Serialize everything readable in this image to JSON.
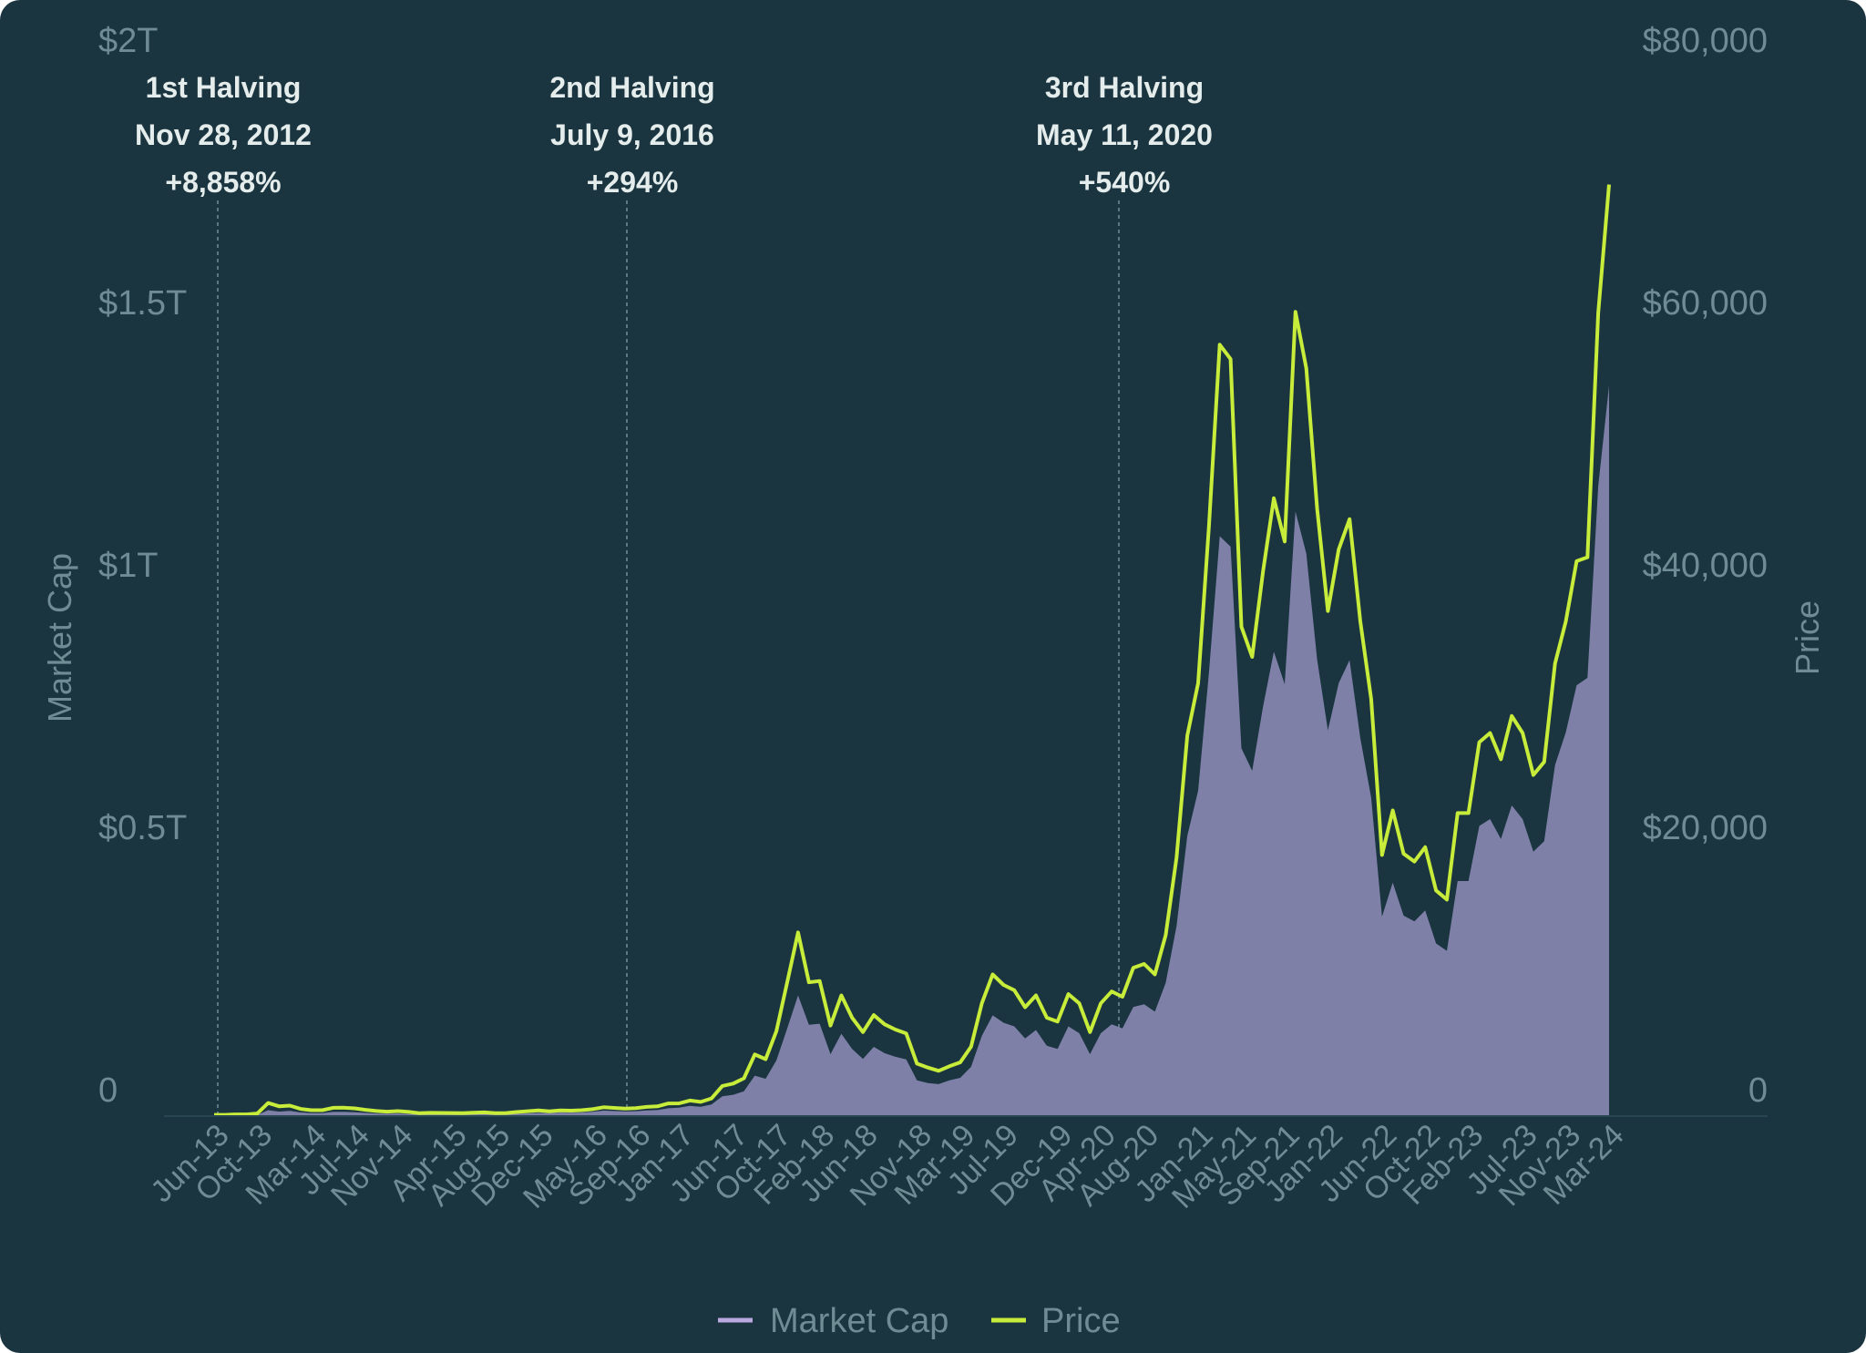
{
  "chart_data": {
    "type": "area+line",
    "title": "",
    "xlabel": "",
    "ylabel_left": "Market Cap",
    "ylabel_right": "Price",
    "ylim_left_billions": [
      0,
      2000
    ],
    "ylim_right": [
      0,
      80000
    ],
    "left_ticks": [
      "0",
      "$0.5T",
      "$1T",
      "$1.5T",
      "$2T"
    ],
    "right_ticks": [
      "0",
      "$20,000",
      "$40,000",
      "$60,000",
      "$80,000"
    ],
    "x_ticks": [
      {
        "label": "Jun-13",
        "i": 0
      },
      {
        "label": "Oct-13",
        "i": 4
      },
      {
        "label": "Mar-14",
        "i": 9
      },
      {
        "label": "Jul-14",
        "i": 13
      },
      {
        "label": "Nov-14",
        "i": 17
      },
      {
        "label": "Apr-15",
        "i": 22
      },
      {
        "label": "Aug-15",
        "i": 26
      },
      {
        "label": "Dec-15",
        "i": 30
      },
      {
        "label": "May-16",
        "i": 35
      },
      {
        "label": "Sep-16",
        "i": 39
      },
      {
        "label": "Jan-17",
        "i": 43
      },
      {
        "label": "Jun-17",
        "i": 48
      },
      {
        "label": "Oct-17",
        "i": 52
      },
      {
        "label": "Feb-18",
        "i": 56
      },
      {
        "label": "Jun-18",
        "i": 60
      },
      {
        "label": "Nov-18",
        "i": 65
      },
      {
        "label": "Mar-19",
        "i": 69
      },
      {
        "label": "Jul-19",
        "i": 73
      },
      {
        "label": "Dec-19",
        "i": 78
      },
      {
        "label": "Apr-20",
        "i": 82
      },
      {
        "label": "Aug-20",
        "i": 86
      },
      {
        "label": "Jan-21",
        "i": 91
      },
      {
        "label": "May-21",
        "i": 95
      },
      {
        "label": "Sep-21",
        "i": 99
      },
      {
        "label": "Jan-22",
        "i": 103
      },
      {
        "label": "Jun-22",
        "i": 108
      },
      {
        "label": "Oct-22",
        "i": 112
      },
      {
        "label": "Feb-23",
        "i": 116
      },
      {
        "label": "Jul-23",
        "i": 121
      },
      {
        "label": "Nov-23",
        "i": 125
      },
      {
        "label": "Mar-24",
        "i": 129
      }
    ],
    "series": [
      {
        "name": "Market Cap",
        "unit": "billions USD",
        "color": "#b9a9e0",
        "values": [
          1.1,
          1.1,
          1.5,
          1.5,
          2.3,
          11.3,
          8.5,
          10,
          6.9,
          5.6,
          5.6,
          7.9,
          8,
          7.4,
          6,
          4.9,
          4.3,
          4.8,
          4,
          3.1,
          3.5,
          3.4,
          3.3,
          3.2,
          3.7,
          4,
          3.2,
          3.3,
          4.4,
          5.2,
          6,
          5.7,
          6.8,
          6.4,
          6.9,
          8.2,
          10.4,
          9.7,
          8.9,
          9.4,
          10.9,
          11.5,
          14.9,
          15.9,
          19.5,
          17.7,
          22.1,
          37.7,
          40.7,
          47.2,
          77.1,
          71.2,
          106,
          167,
          230,
          174,
          176,
          118,
          157,
          128,
          109,
          132,
          120,
          113,
          108,
          68,
          63,
          61,
          68,
          73,
          94,
          153,
          192,
          178,
          171,
          148,
          164,
          134,
          128,
          171,
          158,
          118,
          158,
          175,
          167,
          208,
          213,
          199,
          254,
          362,
          534,
          620,
          846,
          1105,
          1085,
          701,
          658,
          780,
          885,
          823,
          1152,
          1072,
          870,
          735,
          825,
          869,
          720,
          607,
          380,
          445,
          382,
          371,
          392,
          329,
          315,
          448,
          448,
          553,
          566,
          528,
          592,
          566,
          504,
          524,
          669,
          731,
          821,
          835,
          1200,
          1392
        ]
      },
      {
        "name": "Price",
        "unit": "USD",
        "color": "#c8ec3a",
        "values": [
          100,
          100,
          130,
          130,
          200,
          1000,
          750,
          800,
          550,
          450,
          450,
          630,
          640,
          590,
          480,
          390,
          340,
          380,
          320,
          220,
          250,
          245,
          236,
          230,
          263,
          285,
          230,
          236,
          315,
          377,
          430,
          370,
          437,
          416,
          448,
          531,
          673,
          624,
          575,
          609,
          700,
          745,
          964,
          970,
          1190,
          1080,
          1350,
          2300,
          2480,
          2880,
          4700,
          4340,
          6470,
          10200,
          14000,
          10200,
          10300,
          6900,
          9200,
          7500,
          6400,
          7700,
          7000,
          6600,
          6300,
          4000,
          3700,
          3450,
          3800,
          4100,
          5300,
          8600,
          10800,
          10000,
          9600,
          8300,
          9200,
          7500,
          7200,
          9300,
          8600,
          6400,
          8600,
          9500,
          9100,
          11300,
          11600,
          10800,
          13800,
          19700,
          29000,
          33000,
          45000,
          58800,
          57700,
          37300,
          35000,
          41500,
          47100,
          43800,
          61300,
          57000,
          46300,
          38500,
          43200,
          45500,
          37700,
          31800,
          19900,
          23300,
          20000,
          19400,
          20500,
          17200,
          16500,
          23100,
          23100,
          28500,
          29200,
          27200,
          30500,
          29200,
          26000,
          27000,
          34500,
          37700,
          42300,
          42600,
          61200,
          71000
        ]
      }
    ],
    "annotations": [
      {
        "title": "1st Halving",
        "date": "Nov 28, 2012",
        "change": "+8,858%",
        "i": 0
      },
      {
        "title": "2nd Halving",
        "date": "July 9, 2016",
        "change": "+294%",
        "i": 38
      },
      {
        "title": "3rd Halving",
        "date": "May 11, 2020",
        "change": "+540%",
        "i": 83
      }
    ],
    "legend": [
      "Market Cap",
      "Price"
    ],
    "legend_position": "bottom-center",
    "grid": false
  }
}
